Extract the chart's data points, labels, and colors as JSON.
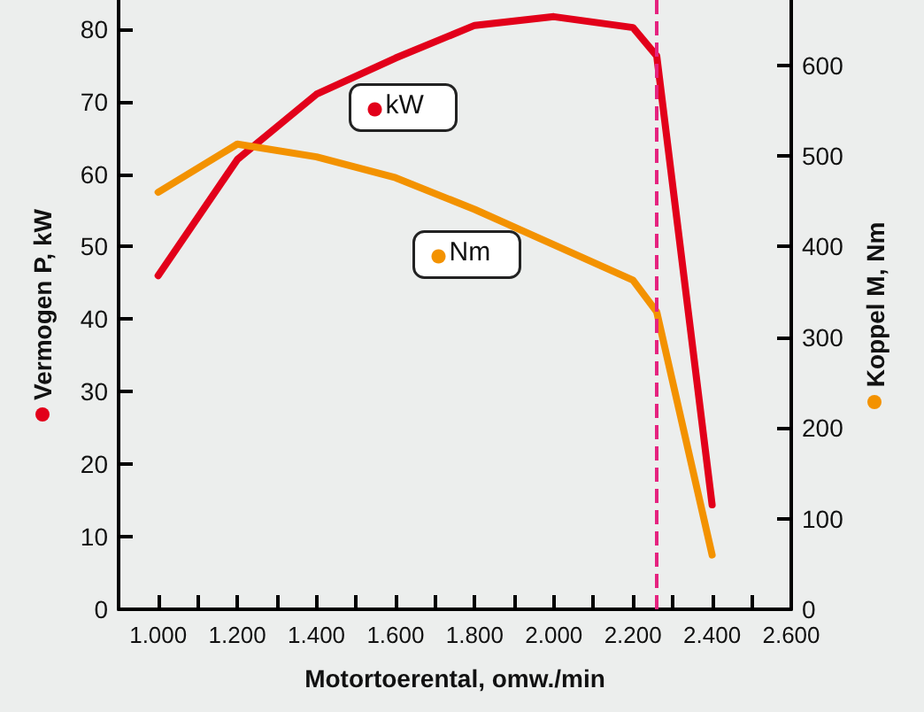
{
  "chart_data": {
    "type": "line",
    "xlabel": "Motortoerental, omw./min",
    "ylabel": "Vermogen P, kW",
    "y2label": "Koppel M, Nm",
    "x": [
      1000,
      1200,
      1400,
      1600,
      1800,
      2000,
      2200,
      2260,
      2400
    ],
    "series": [
      {
        "name": "kW",
        "color": "#e2001a",
        "values": [
          46,
          62,
          71,
          76,
          80.5,
          81.7,
          80.2,
          76.3,
          14.4
        ]
      },
      {
        "name": "Nm",
        "color": "#f39200",
        "axis": "y2",
        "values": [
          460,
          513,
          499,
          476,
          441,
          402,
          363,
          328,
          60
        ]
      }
    ],
    "xlim": [
      900,
      2600
    ],
    "xticks": [
      {
        "value": 1000,
        "label": "1.000"
      },
      {
        "value": 1100,
        "label": null
      },
      {
        "value": 1200,
        "label": "1.200"
      },
      {
        "value": 1300,
        "label": null
      },
      {
        "value": 1400,
        "label": "1.400"
      },
      {
        "value": 1500,
        "label": null
      },
      {
        "value": 1600,
        "label": "1.600"
      },
      {
        "value": 1700,
        "label": null
      },
      {
        "value": 1800,
        "label": "1.800"
      },
      {
        "value": 1900,
        "label": null
      },
      {
        "value": 2000,
        "label": "2.000"
      },
      {
        "value": 2100,
        "label": null
      },
      {
        "value": 2200,
        "label": "2.200"
      },
      {
        "value": 2300,
        "label": null
      },
      {
        "value": 2400,
        "label": "2.400"
      },
      {
        "value": 2500,
        "label": null
      },
      {
        "value": 2600,
        "label": "2.600"
      }
    ],
    "ylim": [
      0,
      84
    ],
    "yticks": [
      0,
      10,
      20,
      30,
      40,
      50,
      60,
      70,
      80
    ],
    "y2lim": [
      0,
      672
    ],
    "y2ticks": [
      0,
      100,
      200,
      300,
      400,
      500,
      600
    ],
    "ref_lines": [
      {
        "axis": "x",
        "value": 2260,
        "color": "#e5237f",
        "line_style": "dashed"
      }
    ],
    "legend": "top",
    "grid": false,
    "marker": "none",
    "line_style": "solid"
  }
}
